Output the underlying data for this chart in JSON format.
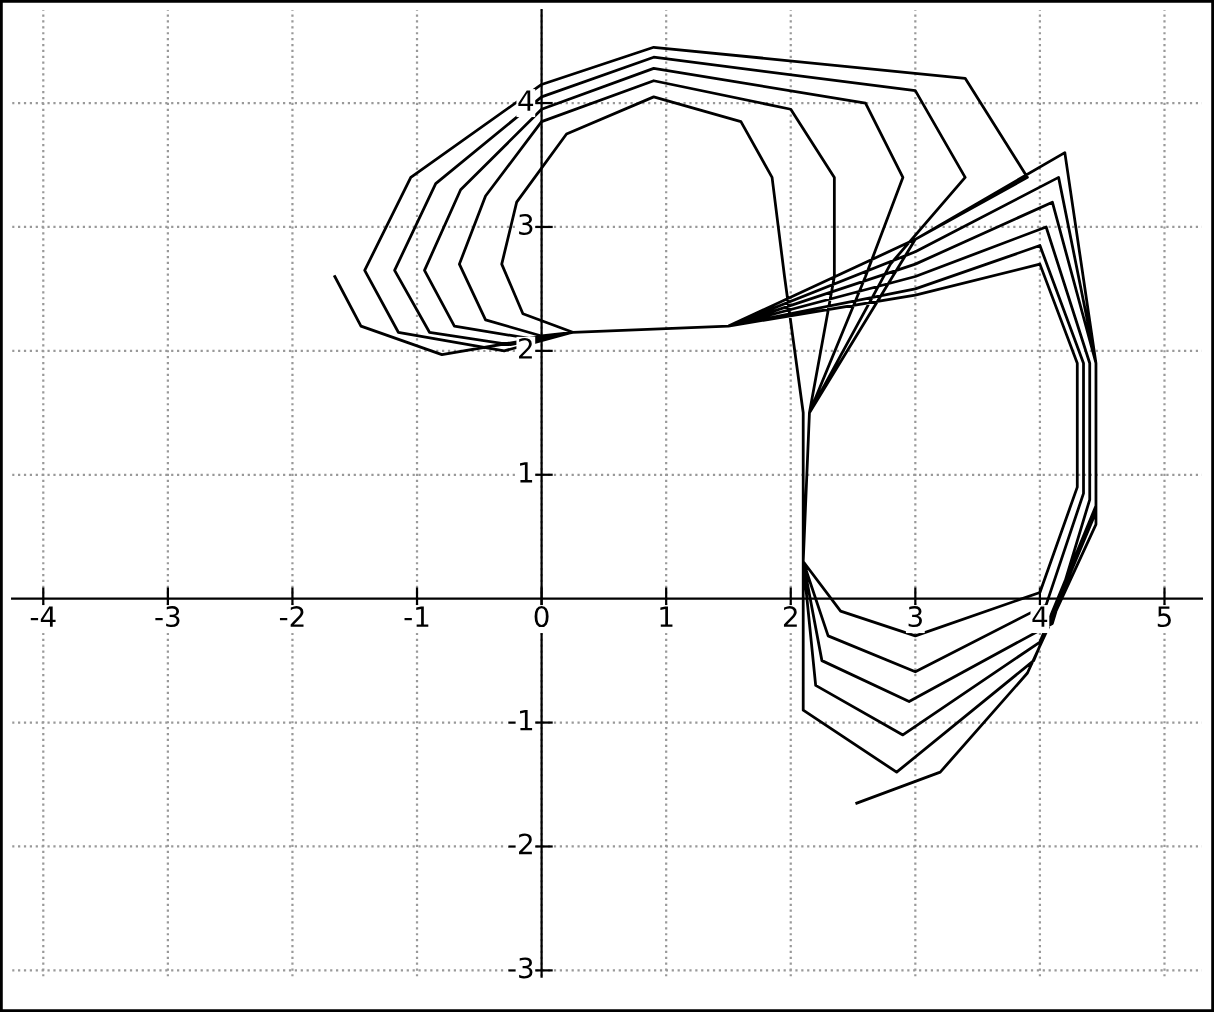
{
  "chart_data": {
    "type": "line",
    "xlim": [
      -4.25,
      5.3
    ],
    "ylim": [
      -3.05,
      4.75
    ],
    "xticks": [
      -4,
      -3,
      -2,
      -1,
      0,
      1,
      2,
      3,
      4,
      5
    ],
    "yticks": [
      -3,
      -2,
      -1,
      1,
      2,
      3,
      4
    ],
    "grid": true,
    "marker": "none",
    "line_style": "solid",
    "series": [
      {
        "color": "#000000",
        "x": [
          -1.66,
          -1.45,
          -0.8,
          0.25,
          1.5,
          3.0,
          4.0,
          4.3,
          4.3,
          4.0,
          3.0,
          2.4,
          2.1,
          2.15,
          3.0,
          3.9,
          3.4,
          0.9,
          0,
          -1.05,
          -1.42,
          -1.15,
          -0.3,
          0.25,
          1.5,
          3.0,
          4.0,
          4.35,
          4.35,
          4.05,
          3.0,
          2.3,
          2.1,
          2.15,
          2.8,
          3.4,
          3.0,
          0.9,
          0,
          -0.85,
          -1.18,
          -0.9,
          -0.25,
          0.25,
          1.5,
          3.0,
          4.05,
          4.4,
          4.4,
          4.1,
          2.95,
          2.25,
          2.1,
          2.15,
          2.6,
          2.9,
          2.6,
          0.9,
          0,
          -0.65,
          -0.94,
          -0.7,
          -0.1,
          0.25,
          1.5,
          3.0,
          4.1,
          4.45,
          4.45,
          4.0,
          2.9,
          2.2,
          2.1,
          2.15,
          2.35,
          2.35,
          2.0,
          0.9,
          0,
          -0.45,
          -0.66,
          -0.45,
          0,
          0.25,
          1.5,
          3.0,
          4.15,
          4.45,
          4.45,
          3.95,
          2.85,
          2.1,
          2.1,
          2.1,
          1.95,
          1.85,
          1.6,
          0.9,
          0.2,
          -0.2,
          -0.32,
          -0.15,
          0.25,
          1.5,
          3.0,
          4.2,
          4.45,
          4.45,
          3.9,
          3.2,
          2.53
        ],
        "values": [
          2.6,
          2.2,
          1.97,
          2.15,
          2.2,
          2.45,
          2.7,
          1.9,
          0.9,
          0.05,
          -0.3,
          -0.1,
          0.3,
          1.5,
          2.9,
          3.4,
          4.2,
          4.45,
          4.15,
          3.4,
          2.65,
          2.15,
          2.0,
          2.15,
          2.2,
          2.5,
          2.85,
          1.9,
          0.85,
          -0.05,
          -0.59,
          -0.3,
          0.3,
          1.5,
          2.7,
          3.4,
          4.1,
          4.37,
          4.05,
          3.35,
          2.65,
          2.15,
          2.05,
          2.15,
          2.2,
          2.6,
          3.0,
          1.9,
          0.8,
          -0.2,
          -0.83,
          -0.5,
          0.3,
          1.5,
          2.6,
          3.4,
          4.0,
          4.28,
          3.95,
          3.3,
          2.65,
          2.2,
          2.1,
          2.15,
          2.2,
          2.7,
          3.2,
          1.9,
          0.75,
          -0.35,
          -1.1,
          -0.7,
          0.3,
          1.5,
          2.6,
          3.4,
          3.95,
          4.18,
          3.85,
          3.25,
          2.7,
          2.25,
          2.12,
          2.15,
          2.2,
          2.8,
          3.4,
          1.9,
          0.7,
          -0.5,
          -1.4,
          -0.9,
          0.3,
          1.5,
          2.6,
          3.4,
          3.85,
          4.05,
          3.75,
          3.2,
          2.7,
          2.3,
          2.15,
          2.2,
          2.9,
          3.6,
          1.9,
          0.6,
          -0.6,
          -1.4,
          -1.65
        ]
      }
    ]
  }
}
